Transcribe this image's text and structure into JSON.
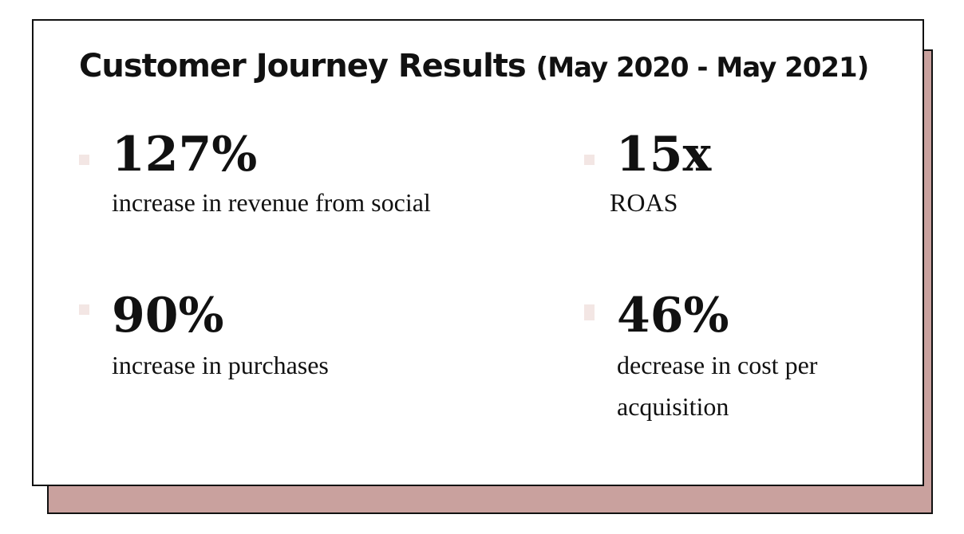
{
  "card": {
    "title": "Customer Journey Results",
    "title_period": "(May 2020 - May 2021)"
  },
  "stats": [
    {
      "value": "127%",
      "description": "increase in revenue from social"
    },
    {
      "value": "15x",
      "description": "ROAS"
    },
    {
      "value": "90%",
      "description": "increase in purchases"
    },
    {
      "value": "46%",
      "description": "decrease in cost per acquisition"
    }
  ],
  "colors": {
    "shadow": "#c9a19e",
    "bullet": "#f3e6e4",
    "text": "#111111"
  }
}
